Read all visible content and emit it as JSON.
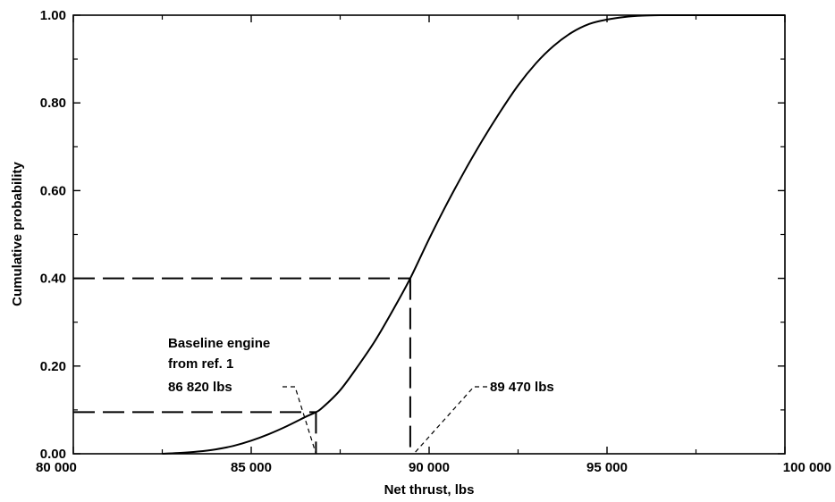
{
  "chart_data": {
    "type": "line",
    "title": "",
    "xlabel": "Net thrust, lbs",
    "ylabel": "Cumulative probability",
    "xlim": [
      80000,
      100000
    ],
    "ylim": [
      0,
      1
    ],
    "grid": false,
    "x_ticks": [
      80000,
      85000,
      90000,
      95000,
      100000
    ],
    "x_tick_labels": [
      "80 000",
      "85 000",
      "90 000",
      "95 000",
      "100 000"
    ],
    "y_ticks": [
      0,
      0.2,
      0.4,
      0.6,
      0.8,
      1.0
    ],
    "y_tick_labels": [
      "0.00",
      "0.20",
      "0.40",
      "0.60",
      "0.80",
      "1.00"
    ],
    "series": [
      {
        "x": [
          82500,
          83000,
          83500,
          84000,
          84500,
          85000,
          85500,
          86000,
          86500,
          86820,
          87000,
          87500,
          88000,
          88500,
          89000,
          89470,
          90000,
          90500,
          91000,
          91500,
          92000,
          92500,
          93000,
          93500,
          94000,
          94500,
          95000,
          95500,
          96000,
          96500,
          97000,
          97500,
          98000,
          100000
        ],
        "y": [
          0.0,
          0.002,
          0.005,
          0.01,
          0.018,
          0.03,
          0.045,
          0.063,
          0.083,
          0.095,
          0.105,
          0.145,
          0.2,
          0.26,
          0.33,
          0.4,
          0.49,
          0.57,
          0.645,
          0.715,
          0.78,
          0.84,
          0.89,
          0.93,
          0.96,
          0.98,
          0.99,
          0.996,
          0.999,
          1.0,
          1.0,
          1.0,
          1.0,
          1.0
        ]
      }
    ],
    "reference_points": [
      {
        "x": 86820,
        "y": 0.095
      },
      {
        "x": 89470,
        "y": 0.4
      }
    ],
    "annotations": {
      "baseline": [
        "Baseline engine",
        "from ref. 1",
        "86 820 lbs"
      ],
      "design": "89 470 lbs"
    }
  }
}
